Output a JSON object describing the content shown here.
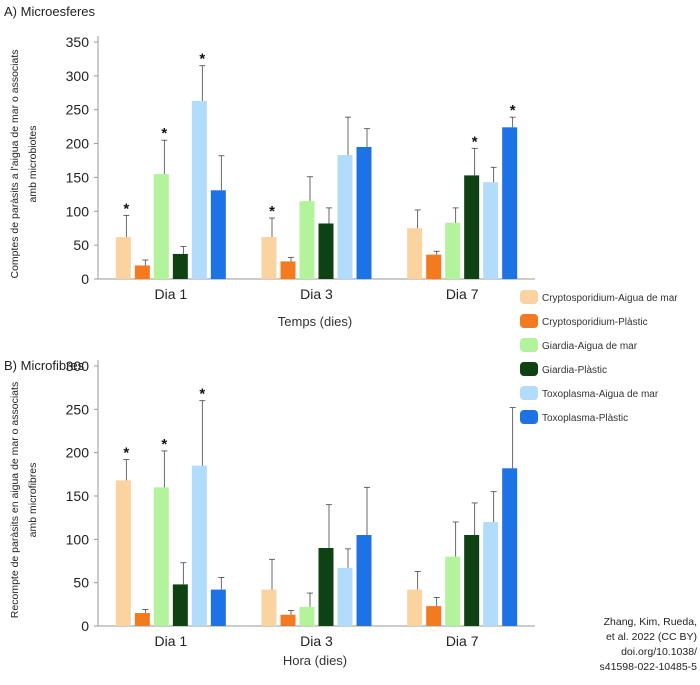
{
  "colors": {
    "Cryptosporidium-Aigua de mar": "#fbd3a0",
    "Cryptosporidium-Plàstic": "#f47a20",
    "Giardia-Aigua de mar": "#b3f39b",
    "Giardia-Plàstic": "#0f4213",
    "Toxoplasma-Aigua de mar": "#b2dcfb",
    "Toxoplasma-Plàstic": "#1d72e6",
    "axis": "#999999",
    "errorbar": "#444444"
  },
  "legend": {
    "items": [
      "Cryptosporidium-Aigua de mar",
      "Cryptosporidium-Plàstic",
      "Giardia-Aigua de mar",
      "Giardia-Plàstic",
      "Toxoplasma-Aigua de mar",
      "Toxoplasma-Plàstic"
    ]
  },
  "credit": {
    "lines": [
      "Zhang, Kim, Rueda,",
      "et al. 2022 (CC BY)",
      "doi.org/10.1038/",
      "s41598-022-10485-5"
    ]
  },
  "chart_data": [
    {
      "type": "bar",
      "panel_title": "A) Microesferes",
      "categories": [
        "Dia 1",
        "Dia 3",
        "Dia 7"
      ],
      "xlabel": "Temps (dies)",
      "ylabel": [
        "Comptes de paràsits a l'aigua de mar o associats",
        "amb  microbiotes"
      ],
      "ylim": [
        0,
        350
      ],
      "yticks": [
        0,
        50,
        100,
        150,
        200,
        250,
        300,
        350
      ],
      "series": [
        {
          "name": "Cryptosporidium-Aigua de mar",
          "values": [
            62,
            62,
            75
          ],
          "errors": [
            32,
            28,
            27
          ],
          "stars": [
            true,
            true,
            false
          ]
        },
        {
          "name": "Cryptosporidium-Plàstic",
          "values": [
            20,
            26,
            36
          ],
          "errors": [
            8,
            6,
            5
          ],
          "stars": [
            false,
            false,
            false
          ]
        },
        {
          "name": "Giardia-Aigua de mar",
          "values": [
            155,
            115,
            83
          ],
          "errors": [
            50,
            36,
            22
          ],
          "stars": [
            true,
            false,
            false
          ]
        },
        {
          "name": "Giardia-Plàstic",
          "values": [
            37,
            82,
            153
          ],
          "errors": [
            11,
            23,
            40
          ],
          "stars": [
            false,
            false,
            true
          ]
        },
        {
          "name": "Toxoplasma-Aigua de mar",
          "values": [
            263,
            183,
            143
          ],
          "errors": [
            52,
            56,
            22
          ],
          "stars": [
            true,
            false,
            false
          ]
        },
        {
          "name": "Toxoplasma-Plàstic",
          "values": [
            131,
            195,
            224
          ],
          "errors": [
            51,
            27,
            15
          ],
          "stars": [
            false,
            false,
            true
          ]
        }
      ]
    },
    {
      "type": "bar",
      "panel_title": "B) Microfibres",
      "categories": [
        "Dia 1",
        "Dia 3",
        "Dia 7"
      ],
      "xlabel": "Hora (dies)",
      "ylabel": [
        "Recompte de paràsits en aigua de mar o associats",
        "amb microfibres"
      ],
      "ylim": [
        0,
        300
      ],
      "yticks": [
        0,
        50,
        100,
        150,
        200,
        250,
        300
      ],
      "series": [
        {
          "name": "Cryptosporidium-Aigua de mar",
          "values": [
            168,
            42,
            42
          ],
          "errors": [
            24,
            35,
            21
          ],
          "stars": [
            true,
            false,
            false
          ]
        },
        {
          "name": "Cryptosporidium-Plàstic",
          "values": [
            15,
            13,
            23
          ],
          "errors": [
            4,
            5,
            10
          ],
          "stars": [
            false,
            false,
            false
          ]
        },
        {
          "name": "Giardia-Aigua de mar",
          "values": [
            160,
            22,
            80
          ],
          "errors": [
            42,
            16,
            40
          ],
          "stars": [
            true,
            false,
            false
          ]
        },
        {
          "name": "Giardia-Plàstic",
          "values": [
            48,
            90,
            105
          ],
          "errors": [
            25,
            50,
            37
          ],
          "stars": [
            false,
            false,
            false
          ]
        },
        {
          "name": "Toxoplasma-Aigua de mar",
          "values": [
            185,
            67,
            120
          ],
          "errors": [
            75,
            22,
            35
          ],
          "stars": [
            true,
            false,
            false
          ]
        },
        {
          "name": "Toxoplasma-Plàstic",
          "values": [
            42,
            105,
            182
          ],
          "errors": [
            14,
            55,
            70
          ],
          "stars": [
            false,
            false,
            false
          ]
        }
      ]
    }
  ]
}
